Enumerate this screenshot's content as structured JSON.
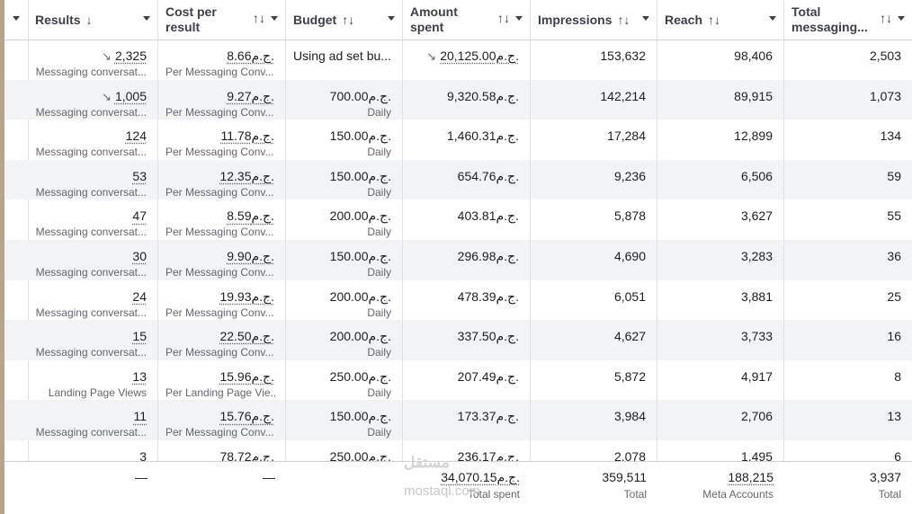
{
  "header": {
    "results": "Results",
    "results_sort": "↓",
    "cost_line1": "Cost per",
    "cost_line2": "result",
    "budget": "Budget",
    "amount_line1": "Amount",
    "amount_line2": "spent",
    "impressions": "Impressions",
    "reach": "Reach",
    "total_line1": "Total",
    "total_line2": "messaging...",
    "sort_icon": "↑↓"
  },
  "rows": [
    {
      "results": "2,325",
      "results_trend": true,
      "results_sub": "Messaging conversat...",
      "cost": "8.66ج.م.",
      "cost_sub": "Per Messaging Conv...",
      "budget": "Using ad set bu...",
      "budget_sub": "",
      "amount": "20,125.00ج.م.",
      "amount_trend": true,
      "impressions": "153,632",
      "reach": "98,406",
      "total": "2,503"
    },
    {
      "results": "1,005",
      "results_trend": true,
      "results_sub": "Messaging conversat...",
      "cost": "9.27ج.م.",
      "cost_sub": "Per Messaging Conv...",
      "budget": "700.00ج.م.",
      "budget_sub": "Daily",
      "amount": "9,320.58ج.م.",
      "amount_trend": false,
      "impressions": "142,214",
      "reach": "89,915",
      "total": "1,073"
    },
    {
      "results": "124",
      "results_trend": false,
      "results_sub": "Messaging conversat...",
      "cost": "11.78ج.م.",
      "cost_sub": "Per Messaging Conv...",
      "budget": "150.00ج.م.",
      "budget_sub": "Daily",
      "amount": "1,460.31ج.م.",
      "amount_trend": false,
      "impressions": "17,284",
      "reach": "12,899",
      "total": "134"
    },
    {
      "results": "53",
      "results_trend": false,
      "results_sub": "Messaging conversat...",
      "cost": "12.35ج.م.",
      "cost_sub": "Per Messaging Conv...",
      "budget": "150.00ج.م.",
      "budget_sub": "Daily",
      "amount": "654.76ج.م.",
      "amount_trend": false,
      "impressions": "9,236",
      "reach": "6,506",
      "total": "59"
    },
    {
      "results": "47",
      "results_trend": false,
      "results_sub": "Messaging conversat...",
      "cost": "8.59ج.م.",
      "cost_sub": "Per Messaging Conv...",
      "budget": "200.00ج.م.",
      "budget_sub": "Daily",
      "amount": "403.81ج.م.",
      "amount_trend": false,
      "impressions": "5,878",
      "reach": "3,627",
      "total": "55"
    },
    {
      "results": "30",
      "results_trend": false,
      "results_sub": "Messaging conversat...",
      "cost": "9.90ج.م.",
      "cost_sub": "Per Messaging Conv...",
      "budget": "150.00ج.م.",
      "budget_sub": "Daily",
      "amount": "296.98ج.م.",
      "amount_trend": false,
      "impressions": "4,690",
      "reach": "3,283",
      "total": "36"
    },
    {
      "results": "24",
      "results_trend": false,
      "results_sub": "Messaging conversat...",
      "cost": "19.93ج.م.",
      "cost_sub": "Per Messaging Conv...",
      "budget": "200.00ج.م.",
      "budget_sub": "Daily",
      "amount": "478.39ج.م.",
      "amount_trend": false,
      "impressions": "6,051",
      "reach": "3,881",
      "total": "25"
    },
    {
      "results": "15",
      "results_trend": false,
      "results_sub": "Messaging conversat...",
      "cost": "22.50ج.م.",
      "cost_sub": "Per Messaging Conv...",
      "budget": "200.00ج.م.",
      "budget_sub": "Daily",
      "amount": "337.50ج.م.",
      "amount_trend": false,
      "impressions": "4,627",
      "reach": "3,733",
      "total": "16"
    },
    {
      "results": "13",
      "results_trend": false,
      "results_sub": "Landing Page Views",
      "cost": "15.96ج.م.",
      "cost_sub": "Per Landing Page Vie...",
      "budget": "250.00ج.م.",
      "budget_sub": "Daily",
      "amount": "207.49ج.م.",
      "amount_trend": false,
      "impressions": "5,872",
      "reach": "4,917",
      "total": "8"
    },
    {
      "results": "11",
      "results_trend": false,
      "results_sub": "Messaging conversat...",
      "cost": "15.76ج.م.",
      "cost_sub": "Per Messaging Conv...",
      "budget": "150.00ج.م.",
      "budget_sub": "Daily",
      "amount": "173.37ج.م.",
      "amount_trend": false,
      "impressions": "3,984",
      "reach": "2,706",
      "total": "13"
    },
    {
      "results": "3",
      "results_trend": false,
      "results_sub": "",
      "cost": "78.72ج.م.",
      "cost_sub": "",
      "budget": "250.00ج.م.",
      "budget_sub": "",
      "amount": "236.17ج.م.",
      "amount_trend": false,
      "impressions": "2,078",
      "reach": "1,495",
      "total": "6"
    }
  ],
  "footer": {
    "results": "—",
    "cost": "—",
    "amount": "34,070.15ج.م.",
    "amount_sub": "Total spent",
    "impressions": "359,511",
    "impressions_sub": "Total",
    "reach": "188,215",
    "reach_sub": "Meta Accounts",
    "total": "3,937",
    "total_sub": "Total"
  },
  "watermark": {
    "logo": "مستقل",
    "text": "mostaql.com"
  }
}
